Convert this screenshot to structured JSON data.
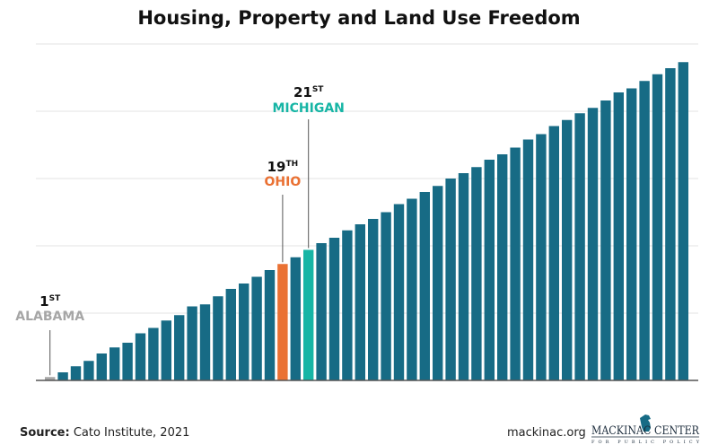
{
  "chart_data": {
    "type": "bar",
    "title": "Housing, Property and Land Use Freedom",
    "xlabel": "",
    "ylabel": "",
    "ylim": [
      0,
      5
    ],
    "grid": true,
    "gridlines": [
      1,
      2,
      3,
      4,
      5
    ],
    "values": [
      0.05,
      0.12,
      0.21,
      0.29,
      0.4,
      0.49,
      0.56,
      0.7,
      0.78,
      0.89,
      0.97,
      1.1,
      1.13,
      1.25,
      1.36,
      1.44,
      1.54,
      1.64,
      1.73,
      1.83,
      1.94,
      2.04,
      2.12,
      2.23,
      2.32,
      2.4,
      2.5,
      2.62,
      2.7,
      2.8,
      2.89,
      3.0,
      3.08,
      3.17,
      3.28,
      3.36,
      3.46,
      3.58,
      3.66,
      3.78,
      3.87,
      3.97,
      4.05,
      4.16,
      4.28,
      4.34,
      4.45,
      4.55,
      4.64,
      4.73
    ],
    "default_color": "#176b85",
    "highlights": [
      {
        "index": 0,
        "rank": "1",
        "suffix": "ST",
        "state": "ALABAMA",
        "color": "#a6a6a6"
      },
      {
        "index": 18,
        "rank": "19",
        "suffix": "TH",
        "state": "OHIO",
        "color": "#ea7133"
      },
      {
        "index": 20,
        "rank": "21",
        "suffix": "ST",
        "state": "MICHIGAN",
        "color": "#16b5a5"
      }
    ]
  },
  "footer": {
    "source_label": "Source:",
    "source_text": " Cato Institute, 2021",
    "website": "mackinac.org",
    "logo_text": "MACKINAC CENTER",
    "logo_subtext": "FOR PUBLIC POLICY"
  }
}
